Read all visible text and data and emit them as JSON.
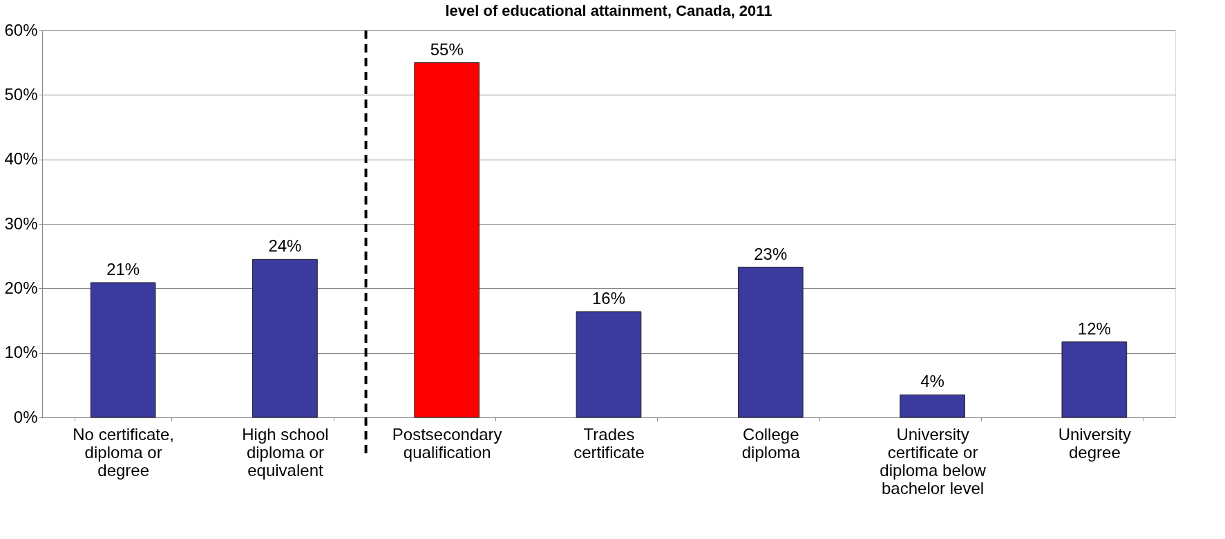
{
  "chart_data": {
    "type": "bar",
    "title": "level of educational attainment, Canada, 2011",
    "categories": [
      "No certificate,\ndiploma or\ndegree",
      "High school\ndiploma or\nequivalent",
      "Postsecondary\nqualification",
      "Trades\ncertificate",
      "College\ndiploma",
      "University\ncertificate or\ndiploma below\nbachelor level",
      "University\ndegree"
    ],
    "values": [
      20.9,
      24.5,
      55.0,
      16.4,
      23.3,
      3.5,
      11.7
    ],
    "colors": [
      "#3a3a9f",
      "#3a3a9f",
      "#ff0000",
      "#3a3a9f",
      "#3a3a9f",
      "#3a3a9f",
      "#3a3a9f"
    ],
    "value_labels": [
      "21%",
      "24%",
      "55%",
      "16%",
      "23%",
      "4%",
      "12%"
    ],
    "ylim": [
      0,
      60
    ],
    "yticks": [
      {
        "value": 0,
        "label": "0%"
      },
      {
        "value": 10,
        "label": "10%"
      },
      {
        "value": 20,
        "label": "20%"
      },
      {
        "value": 30,
        "label": "30%"
      },
      {
        "value": 40,
        "label": "40%"
      },
      {
        "value": 50,
        "label": "50%"
      },
      {
        "value": 60,
        "label": "60%"
      }
    ],
    "ref_lines": [
      {
        "axis": "x",
        "value": "High school\ndiploma or\nequivalent",
        "color": "#000000",
        "line_style": "dashed"
      }
    ],
    "grid": "y"
  }
}
